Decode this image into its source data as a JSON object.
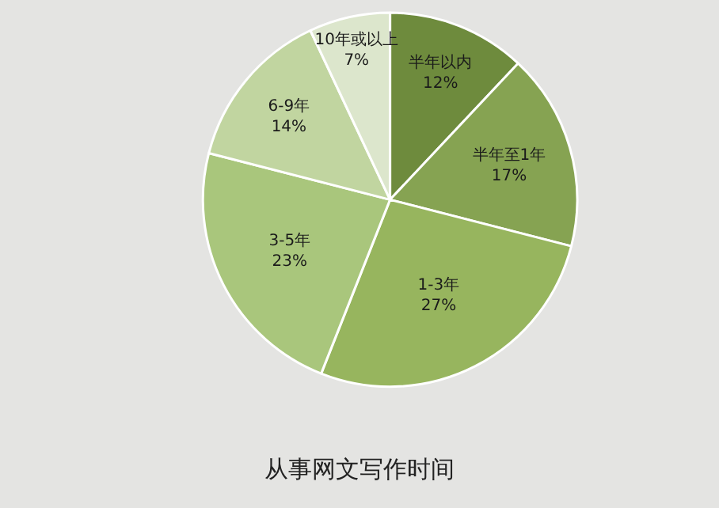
{
  "chart_data": {
    "type": "pie",
    "title": "从事网文写作时间",
    "categories": [
      "半年以内",
      "半年至1年",
      "1-3年",
      "3-5年",
      "6-9年",
      "10年或以上"
    ],
    "values": [
      12,
      17,
      27,
      23,
      14,
      7
    ],
    "value_labels": [
      "12%",
      "17%",
      "27%",
      "23%",
      "14%",
      "7%"
    ],
    "colors": [
      "#6e8b3d",
      "#86a352",
      "#97b55e",
      "#a9c67c",
      "#c1d5a0",
      "#dce6cc"
    ],
    "legend": false
  }
}
